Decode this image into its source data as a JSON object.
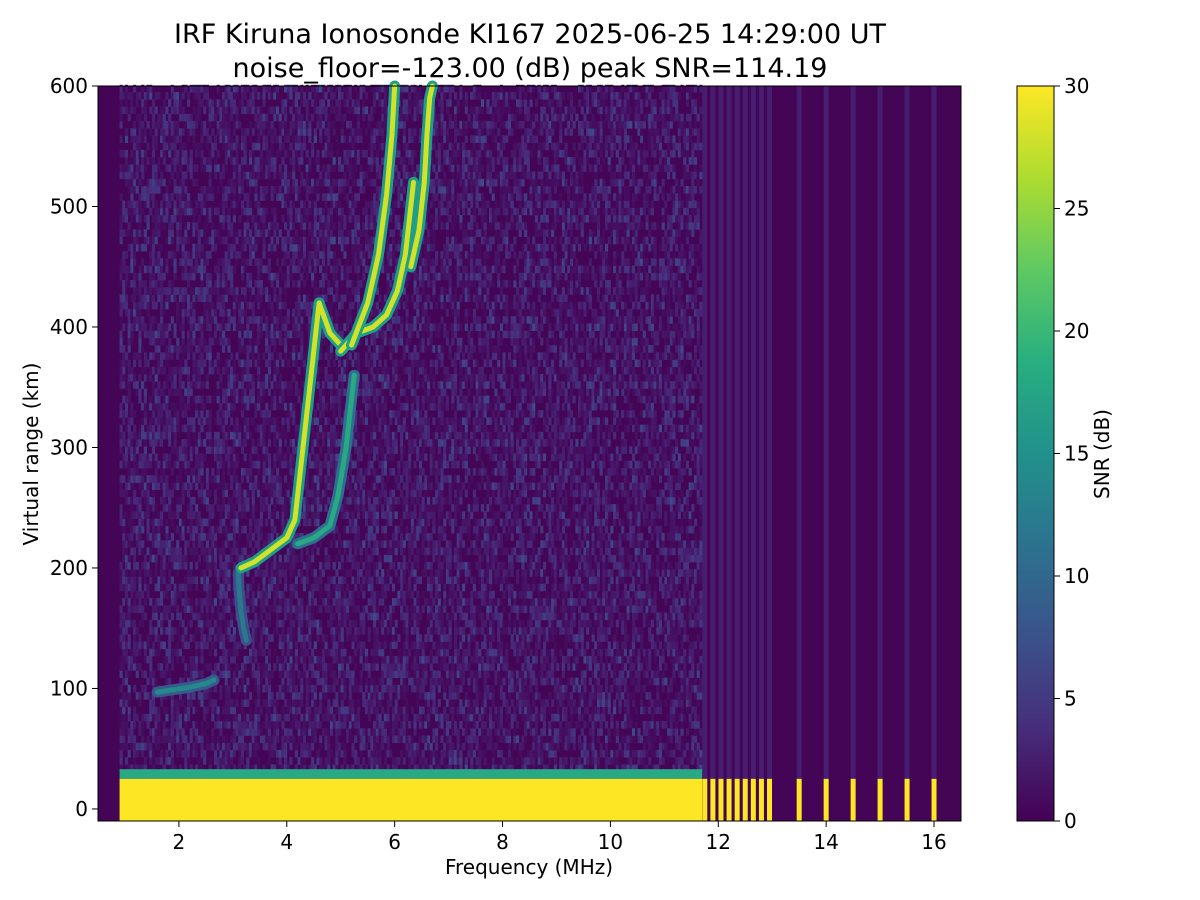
{
  "chart_data": {
    "type": "heatmap",
    "title": "IRF Kiruna Ionosonde KI167 2025-06-25 14:29:00  UT",
    "subtitle": "noise_floor=-123.00 (dB) peak SNR=114.19",
    "xlabel": "Frequency (MHz)",
    "ylabel": "Virtual range (km)",
    "xlim": [
      0.5,
      16.5
    ],
    "ylim": [
      -10,
      600
    ],
    "x_ticks": [
      2,
      4,
      6,
      8,
      10,
      12,
      14,
      16
    ],
    "x_tick_labels": [
      "2",
      "4",
      "6",
      "8",
      "10",
      "12",
      "14",
      "16"
    ],
    "y_ticks": [
      0,
      100,
      200,
      300,
      400,
      500,
      600
    ],
    "y_tick_labels": [
      "0",
      "100",
      "200",
      "300",
      "400",
      "500",
      "600"
    ],
    "colorbar": {
      "label": "SNR (dB)",
      "range": [
        0,
        30
      ],
      "ticks": [
        0,
        5,
        10,
        15,
        20,
        25,
        30
      ],
      "tick_labels": [
        "0",
        "5",
        "10",
        "15",
        "20",
        "25",
        "30"
      ],
      "colormap": "viridis"
    },
    "sweep_range_mhz": [
      0.9,
      16.1
    ],
    "continuous_sweep_end_mhz": 11.7,
    "discrete_freqs_mhz": [
      11.75,
      11.9,
      12.05,
      12.2,
      12.35,
      12.5,
      12.65,
      12.8,
      12.95,
      13.5,
      14.0,
      14.5,
      15.0,
      15.5,
      16.0
    ],
    "ground_clutter_km": [
      0,
      25
    ],
    "traces": [
      {
        "freq_mhz": [
          1.6,
          1.9,
          2.2,
          2.5,
          2.65
        ],
        "range_km": [
          97,
          99,
          101,
          104,
          107
        ],
        "snr_db": 14
      },
      {
        "freq_mhz": [
          3.1,
          3.12,
          3.15,
          3.2,
          3.25
        ],
        "range_km": [
          195,
          180,
          165,
          150,
          140
        ],
        "snr_db": 12
      },
      {
        "freq_mhz": [
          3.15,
          3.4,
          3.7,
          4.0,
          4.15,
          4.3,
          4.45,
          4.6,
          4.8,
          5.0
        ],
        "range_km": [
          200,
          205,
          215,
          225,
          240,
          300,
          360,
          420,
          395,
          385
        ],
        "snr_db": 28
      },
      {
        "freq_mhz": [
          4.2,
          4.5,
          4.8,
          4.95,
          5.1,
          5.25
        ],
        "range_km": [
          220,
          225,
          235,
          260,
          300,
          360
        ],
        "snr_db": 18
      },
      {
        "freq_mhz": [
          5.0,
          5.3,
          5.6,
          5.85,
          6.05,
          6.2,
          6.35
        ],
        "range_km": [
          380,
          395,
          400,
          410,
          430,
          460,
          520
        ],
        "snr_db": 28
      },
      {
        "freq_mhz": [
          5.2,
          5.5,
          5.7,
          5.85,
          5.95,
          6.0
        ],
        "range_km": [
          385,
          420,
          460,
          510,
          560,
          600
        ],
        "snr_db": 28
      },
      {
        "freq_mhz": [
          6.3,
          6.45,
          6.55,
          6.6,
          6.65,
          6.7
        ],
        "range_km": [
          450,
          480,
          520,
          560,
          590,
          600
        ],
        "snr_db": 28
      }
    ]
  }
}
